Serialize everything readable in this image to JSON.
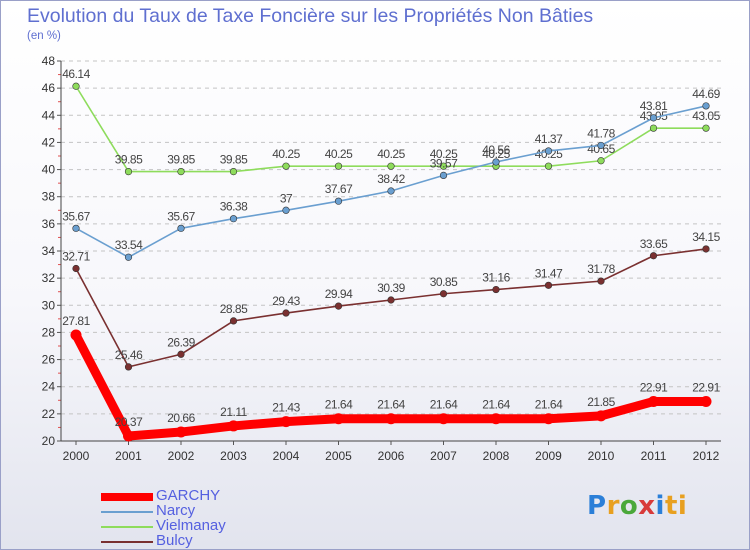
{
  "chart_data": {
    "type": "line",
    "title": "Evolution du Taux de Taxe Foncière sur les Propriétés Non Bâties",
    "subtitle": "(en %)",
    "xlabel": "",
    "ylabel": "",
    "ylim": [
      20,
      48
    ],
    "yticks": [
      20,
      22,
      24,
      26,
      28,
      30,
      32,
      34,
      36,
      38,
      40,
      42,
      44,
      46,
      48
    ],
    "x": [
      "2000",
      "2001",
      "2002",
      "2003",
      "2004",
      "2005",
      "2006",
      "2007",
      "2008",
      "2009",
      "2010",
      "2011",
      "2012"
    ],
    "grid": "horizontal-dashed",
    "legend_position": "bottom-left",
    "series": [
      {
        "name": "GARCHY",
        "color": "#ff0000",
        "values": [
          27.81,
          20.37,
          20.66,
          21.11,
          21.43,
          21.64,
          21.64,
          21.64,
          21.64,
          21.64,
          21.85,
          22.91,
          22.91
        ],
        "labels": [
          "27.81",
          "20.37",
          "20.66",
          "21.11",
          "21.43",
          "21.64",
          "21.64",
          "21.64",
          "21.64",
          "21.64",
          "21.85",
          "22.91",
          "22.91"
        ]
      },
      {
        "name": "Narcy",
        "color": "#6a9fd0",
        "values": [
          35.67,
          33.54,
          35.67,
          36.38,
          37,
          37.67,
          38.42,
          39.57,
          40.56,
          41.37,
          41.78,
          43.81,
          44.69
        ],
        "labels": [
          "35.67",
          "33.54",
          "35.67",
          "36.38",
          "37",
          "37.67",
          "38.42",
          "39.57",
          "40.56",
          "41.37",
          "41.78",
          "43.81",
          "44.69"
        ]
      },
      {
        "name": "Vielmanay",
        "color": "#8edc5c",
        "values": [
          46.14,
          39.85,
          39.85,
          39.85,
          40.25,
          40.25,
          40.25,
          40.25,
          40.25,
          40.25,
          40.65,
          43.05,
          43.05
        ],
        "labels": [
          "46.14",
          "39.85",
          "39.85",
          "39.85",
          "40.25",
          "40.25",
          "40.25",
          "40.25",
          "40.25",
          "40.25",
          "40.65",
          "43.05",
          "43.05"
        ]
      },
      {
        "name": "Bulcy",
        "color": "#7a3030",
        "values": [
          32.71,
          25.46,
          26.39,
          28.85,
          29.43,
          29.94,
          30.39,
          30.85,
          31.16,
          31.47,
          31.78,
          33.65,
          34.15
        ],
        "labels": [
          "32.71",
          "25.46",
          "26.39",
          "28.85",
          "29.43",
          "29.94",
          "30.39",
          "30.85",
          "31.16",
          "31.47",
          "31.78",
          "33.65",
          "34.15"
        ]
      }
    ]
  },
  "legend": [
    {
      "label": "GARCHY",
      "color": "#ff0000"
    },
    {
      "label": "Narcy",
      "color": "#6a9fd0"
    },
    {
      "label": "Vielmanay",
      "color": "#8edc5c"
    },
    {
      "label": "Bulcy",
      "color": "#7a3030"
    }
  ],
  "logo": {
    "text": "Proxiti",
    "parts": [
      "P",
      "r",
      "o",
      "x",
      "i",
      "ti"
    ]
  }
}
